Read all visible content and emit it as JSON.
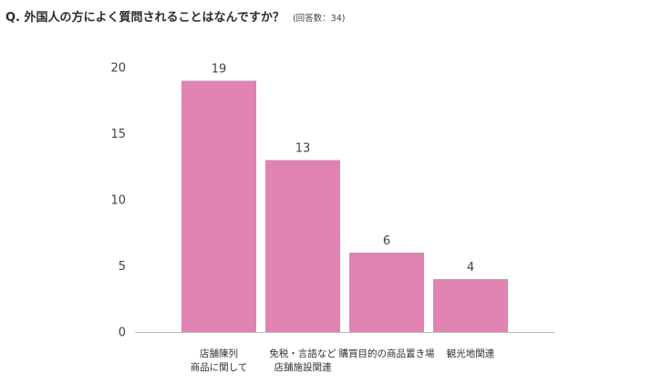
{
  "header": {
    "title": "Q. 外国人の方によく質問されることはなんですか？",
    "note": "(回答数：34)"
  },
  "chart_data": {
    "type": "bar",
    "categories": [
      [
        "店舗陳列",
        "商品に関して"
      ],
      [
        "免税・言語など",
        "店舗施設関連"
      ],
      [
        "購買目的の商品置き場"
      ],
      [
        "観光地関連"
      ]
    ],
    "values": [
      19,
      13,
      6,
      4
    ],
    "ylim": [
      0,
      20
    ],
    "yticks": [
      0,
      5,
      10,
      15,
      20
    ],
    "grid": false,
    "bar_color": "#e083b3",
    "axis_color": "#bbbbbb"
  }
}
